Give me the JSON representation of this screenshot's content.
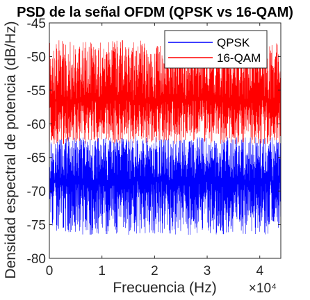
{
  "chart_data": {
    "type": "line",
    "title": "PSD de la señal OFDM (QPSK vs 16-QAM)",
    "xlabel": "Frecuencia (Hz)",
    "ylabel": "Densidad espectral de potencia (dB/Hz)",
    "x_exponent_label": "×10⁴",
    "xlim": [
      0,
      44000
    ],
    "ylim": [
      -80,
      -45
    ],
    "x_ticks": [
      0,
      10000,
      20000,
      30000,
      40000
    ],
    "x_tick_labels": [
      "0",
      "1",
      "2",
      "3",
      "4"
    ],
    "y_ticks": [
      -80,
      -75,
      -70,
      -65,
      -60,
      -55,
      -50,
      -45
    ],
    "y_tick_labels": [
      "-80",
      "-75",
      "-70",
      "-65",
      "-60",
      "-55",
      "-50",
      "-45"
    ],
    "grid": false,
    "legend_position": "top-right",
    "series": [
      {
        "name": "QPSK",
        "color": "#0000ff",
        "x_start": 0,
        "x_end": 44000,
        "mean_level": -68.5,
        "peak_level": -62,
        "trough_level": -76.5
      },
      {
        "name": "16-QAM",
        "color": "#ff0000",
        "x_start": 0,
        "x_end": 44000,
        "mean_level": -56.5,
        "peak_level": -47.5,
        "trough_level": -63
      }
    ]
  }
}
